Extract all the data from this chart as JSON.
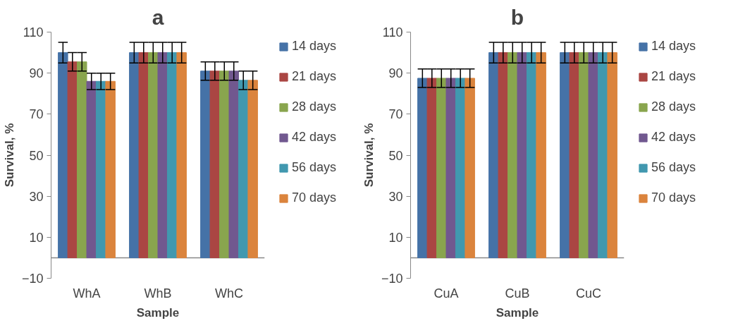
{
  "chart_data": [
    {
      "type": "bar",
      "title": "a",
      "xlabel": "Sample",
      "ylabel": "Survival, %",
      "categories": [
        "WhA",
        "WhB",
        "WhC"
      ],
      "ylim": [
        -10,
        110
      ],
      "yticks": [
        -10,
        10,
        30,
        50,
        70,
        90,
        110
      ],
      "grid": false,
      "legend": "right",
      "series": [
        {
          "name": "14 days",
          "color": "#4572a7",
          "values": [
            100,
            100,
            91
          ],
          "errors": [
            5,
            5,
            4.5
          ]
        },
        {
          "name": "21 days",
          "color": "#aa4643",
          "values": [
            95.5,
            100,
            91
          ],
          "errors": [
            4.5,
            5,
            4.5
          ]
        },
        {
          "name": "28 days",
          "color": "#89a54e",
          "values": [
            95.5,
            100,
            91
          ],
          "errors": [
            4.5,
            5,
            4.5
          ]
        },
        {
          "name": "42 days",
          "color": "#71588f",
          "values": [
            86,
            100,
            91
          ],
          "errors": [
            4,
            5,
            4.5
          ]
        },
        {
          "name": "56 days",
          "color": "#4198af",
          "values": [
            86,
            100,
            86.5
          ],
          "errors": [
            4,
            5,
            4.5
          ]
        },
        {
          "name": "70 days",
          "color": "#db843d",
          "values": [
            86,
            100,
            86.5
          ],
          "errors": [
            4,
            5,
            4.5
          ]
        }
      ]
    },
    {
      "type": "bar",
      "title": "b",
      "xlabel": "Sample",
      "ylabel": "Survival, %",
      "categories": [
        "CuA",
        "CuB",
        "CuC"
      ],
      "ylim": [
        -10,
        110
      ],
      "yticks": [
        -10,
        10,
        30,
        50,
        70,
        90,
        110
      ],
      "grid": false,
      "legend": "right",
      "series": [
        {
          "name": "14 days",
          "color": "#4572a7",
          "values": [
            87.5,
            100,
            100
          ],
          "errors": [
            4.5,
            5,
            5
          ]
        },
        {
          "name": "21 days",
          "color": "#aa4643",
          "values": [
            87.5,
            100,
            100
          ],
          "errors": [
            4.5,
            5,
            5
          ]
        },
        {
          "name": "28 days",
          "color": "#89a54e",
          "values": [
            87.5,
            100,
            100
          ],
          "errors": [
            4.5,
            5,
            5
          ]
        },
        {
          "name": "42 days",
          "color": "#71588f",
          "values": [
            87.5,
            100,
            100
          ],
          "errors": [
            4.5,
            5,
            5
          ]
        },
        {
          "name": "56 days",
          "color": "#4198af",
          "values": [
            87.5,
            100,
            100
          ],
          "errors": [
            4.5,
            5,
            5
          ]
        },
        {
          "name": "70 days",
          "color": "#db843d",
          "values": [
            87.5,
            100,
            100
          ],
          "errors": [
            4.5,
            5,
            5
          ]
        }
      ]
    }
  ]
}
